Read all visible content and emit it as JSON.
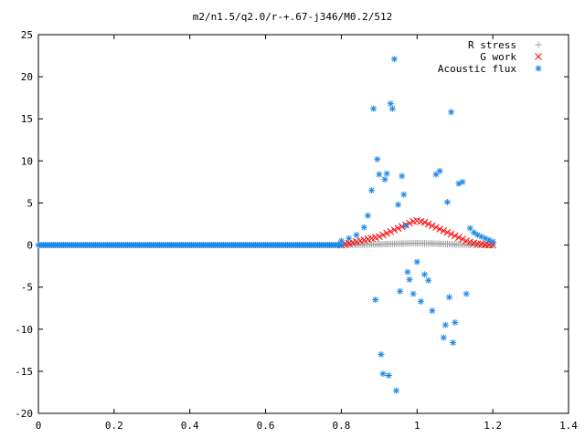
{
  "chart_data": {
    "type": "scatter",
    "title": "m2/n1.5/q2.0/r-+.67-j346/M0.2/512",
    "xlabel": "",
    "ylabel": "",
    "xlim": [
      0,
      1.4
    ],
    "ylim": [
      -20,
      25
    ],
    "x_ticks": [
      "0",
      "0.2",
      "0.4",
      "0.6",
      "0.8",
      "1",
      "1.2",
      "1.4"
    ],
    "y_ticks": [
      "25",
      "20",
      "15",
      "10",
      "5",
      "0",
      "-5",
      "-10",
      "-15",
      "-20"
    ],
    "legend_position": "top-right",
    "grid": false,
    "series": [
      {
        "name": "R stress",
        "marker": "+",
        "color": "#a0a0a0",
        "x_range": [
          0.8,
          1.2
        ],
        "points": [
          [
            0.8,
            0
          ],
          [
            0.82,
            0.02
          ],
          [
            0.84,
            0.03
          ],
          [
            0.86,
            0.05
          ],
          [
            0.88,
            0.08
          ],
          [
            0.9,
            0.1
          ],
          [
            0.92,
            0.12
          ],
          [
            0.94,
            0.15
          ],
          [
            0.96,
            0.18
          ],
          [
            0.98,
            0.2
          ],
          [
            1.0,
            0.22
          ],
          [
            1.02,
            0.2
          ],
          [
            1.04,
            0.18
          ],
          [
            1.06,
            0.15
          ],
          [
            1.08,
            0.12
          ],
          [
            1.1,
            0.08
          ],
          [
            1.12,
            0.05
          ],
          [
            1.14,
            0.03
          ],
          [
            1.16,
            0.02
          ],
          [
            1.18,
            0.01
          ],
          [
            1.2,
            0
          ]
        ]
      },
      {
        "name": "G work",
        "marker": "x",
        "color": "#ff0000",
        "points": [
          [
            0.8,
            0
          ],
          [
            0.81,
            0.1
          ],
          [
            0.82,
            0.2
          ],
          [
            0.83,
            0.3
          ],
          [
            0.84,
            0.4
          ],
          [
            0.85,
            0.5
          ],
          [
            0.86,
            0.6
          ],
          [
            0.87,
            0.7
          ],
          [
            0.88,
            0.8
          ],
          [
            0.89,
            0.9
          ],
          [
            0.9,
            1.0
          ],
          [
            0.91,
            1.2
          ],
          [
            0.92,
            1.4
          ],
          [
            0.93,
            1.6
          ],
          [
            0.94,
            1.8
          ],
          [
            0.95,
            2.0
          ],
          [
            0.96,
            2.2
          ],
          [
            0.97,
            2.4
          ],
          [
            0.98,
            2.6
          ],
          [
            0.99,
            2.8
          ],
          [
            1.0,
            2.9
          ],
          [
            1.01,
            2.8
          ],
          [
            1.02,
            2.7
          ],
          [
            1.03,
            2.5
          ],
          [
            1.04,
            2.3
          ],
          [
            1.05,
            2.1
          ],
          [
            1.06,
            1.9
          ],
          [
            1.07,
            1.7
          ],
          [
            1.08,
            1.5
          ],
          [
            1.09,
            1.3
          ],
          [
            1.1,
            1.1
          ],
          [
            1.11,
            0.9
          ],
          [
            1.12,
            0.7
          ],
          [
            1.13,
            0.5
          ],
          [
            1.14,
            0.35
          ],
          [
            1.15,
            0.25
          ],
          [
            1.16,
            0.15
          ],
          [
            1.17,
            0.1
          ],
          [
            1.18,
            0.05
          ],
          [
            1.19,
            0.02
          ],
          [
            1.2,
            0
          ]
        ]
      },
      {
        "name": "Acoustic flux",
        "marker": "*",
        "color": "#1e88e5",
        "baseline_x_range": [
          0,
          0.8
        ],
        "baseline_y": 0,
        "points": [
          [
            0.8,
            0.5
          ],
          [
            0.82,
            0.8
          ],
          [
            0.84,
            1.2
          ],
          [
            0.86,
            2.1
          ],
          [
            0.87,
            3.5
          ],
          [
            0.88,
            6.5
          ],
          [
            0.885,
            16.2
          ],
          [
            0.89,
            -6.5
          ],
          [
            0.895,
            10.2
          ],
          [
            0.9,
            8.4
          ],
          [
            0.905,
            -13.0
          ],
          [
            0.91,
            -15.3
          ],
          [
            0.915,
            7.8
          ],
          [
            0.92,
            8.5
          ],
          [
            0.925,
            -15.5
          ],
          [
            0.93,
            16.8
          ],
          [
            0.935,
            16.2
          ],
          [
            0.94,
            22.1
          ],
          [
            0.945,
            -17.3
          ],
          [
            0.95,
            4.8
          ],
          [
            0.955,
            -5.5
          ],
          [
            0.96,
            8.2
          ],
          [
            0.965,
            6.0
          ],
          [
            0.97,
            2.3
          ],
          [
            0.975,
            -3.2
          ],
          [
            0.98,
            -4.1
          ],
          [
            0.99,
            -5.8
          ],
          [
            1.0,
            -2.0
          ],
          [
            1.01,
            -6.7
          ],
          [
            1.02,
            -3.5
          ],
          [
            1.03,
            -4.2
          ],
          [
            1.04,
            -7.8
          ],
          [
            1.05,
            8.4
          ],
          [
            1.06,
            8.8
          ],
          [
            1.07,
            -11.0
          ],
          [
            1.075,
            -9.5
          ],
          [
            1.08,
            5.1
          ],
          [
            1.085,
            -6.2
          ],
          [
            1.09,
            15.8
          ],
          [
            1.095,
            -11.6
          ],
          [
            1.1,
            -9.2
          ],
          [
            1.11,
            7.3
          ],
          [
            1.12,
            7.5
          ],
          [
            1.13,
            -5.8
          ],
          [
            1.14,
            2.0
          ],
          [
            1.15,
            1.5
          ],
          [
            1.16,
            1.2
          ],
          [
            1.17,
            1.0
          ],
          [
            1.18,
            0.8
          ],
          [
            1.19,
            0.6
          ],
          [
            1.2,
            0.4
          ]
        ]
      }
    ]
  }
}
